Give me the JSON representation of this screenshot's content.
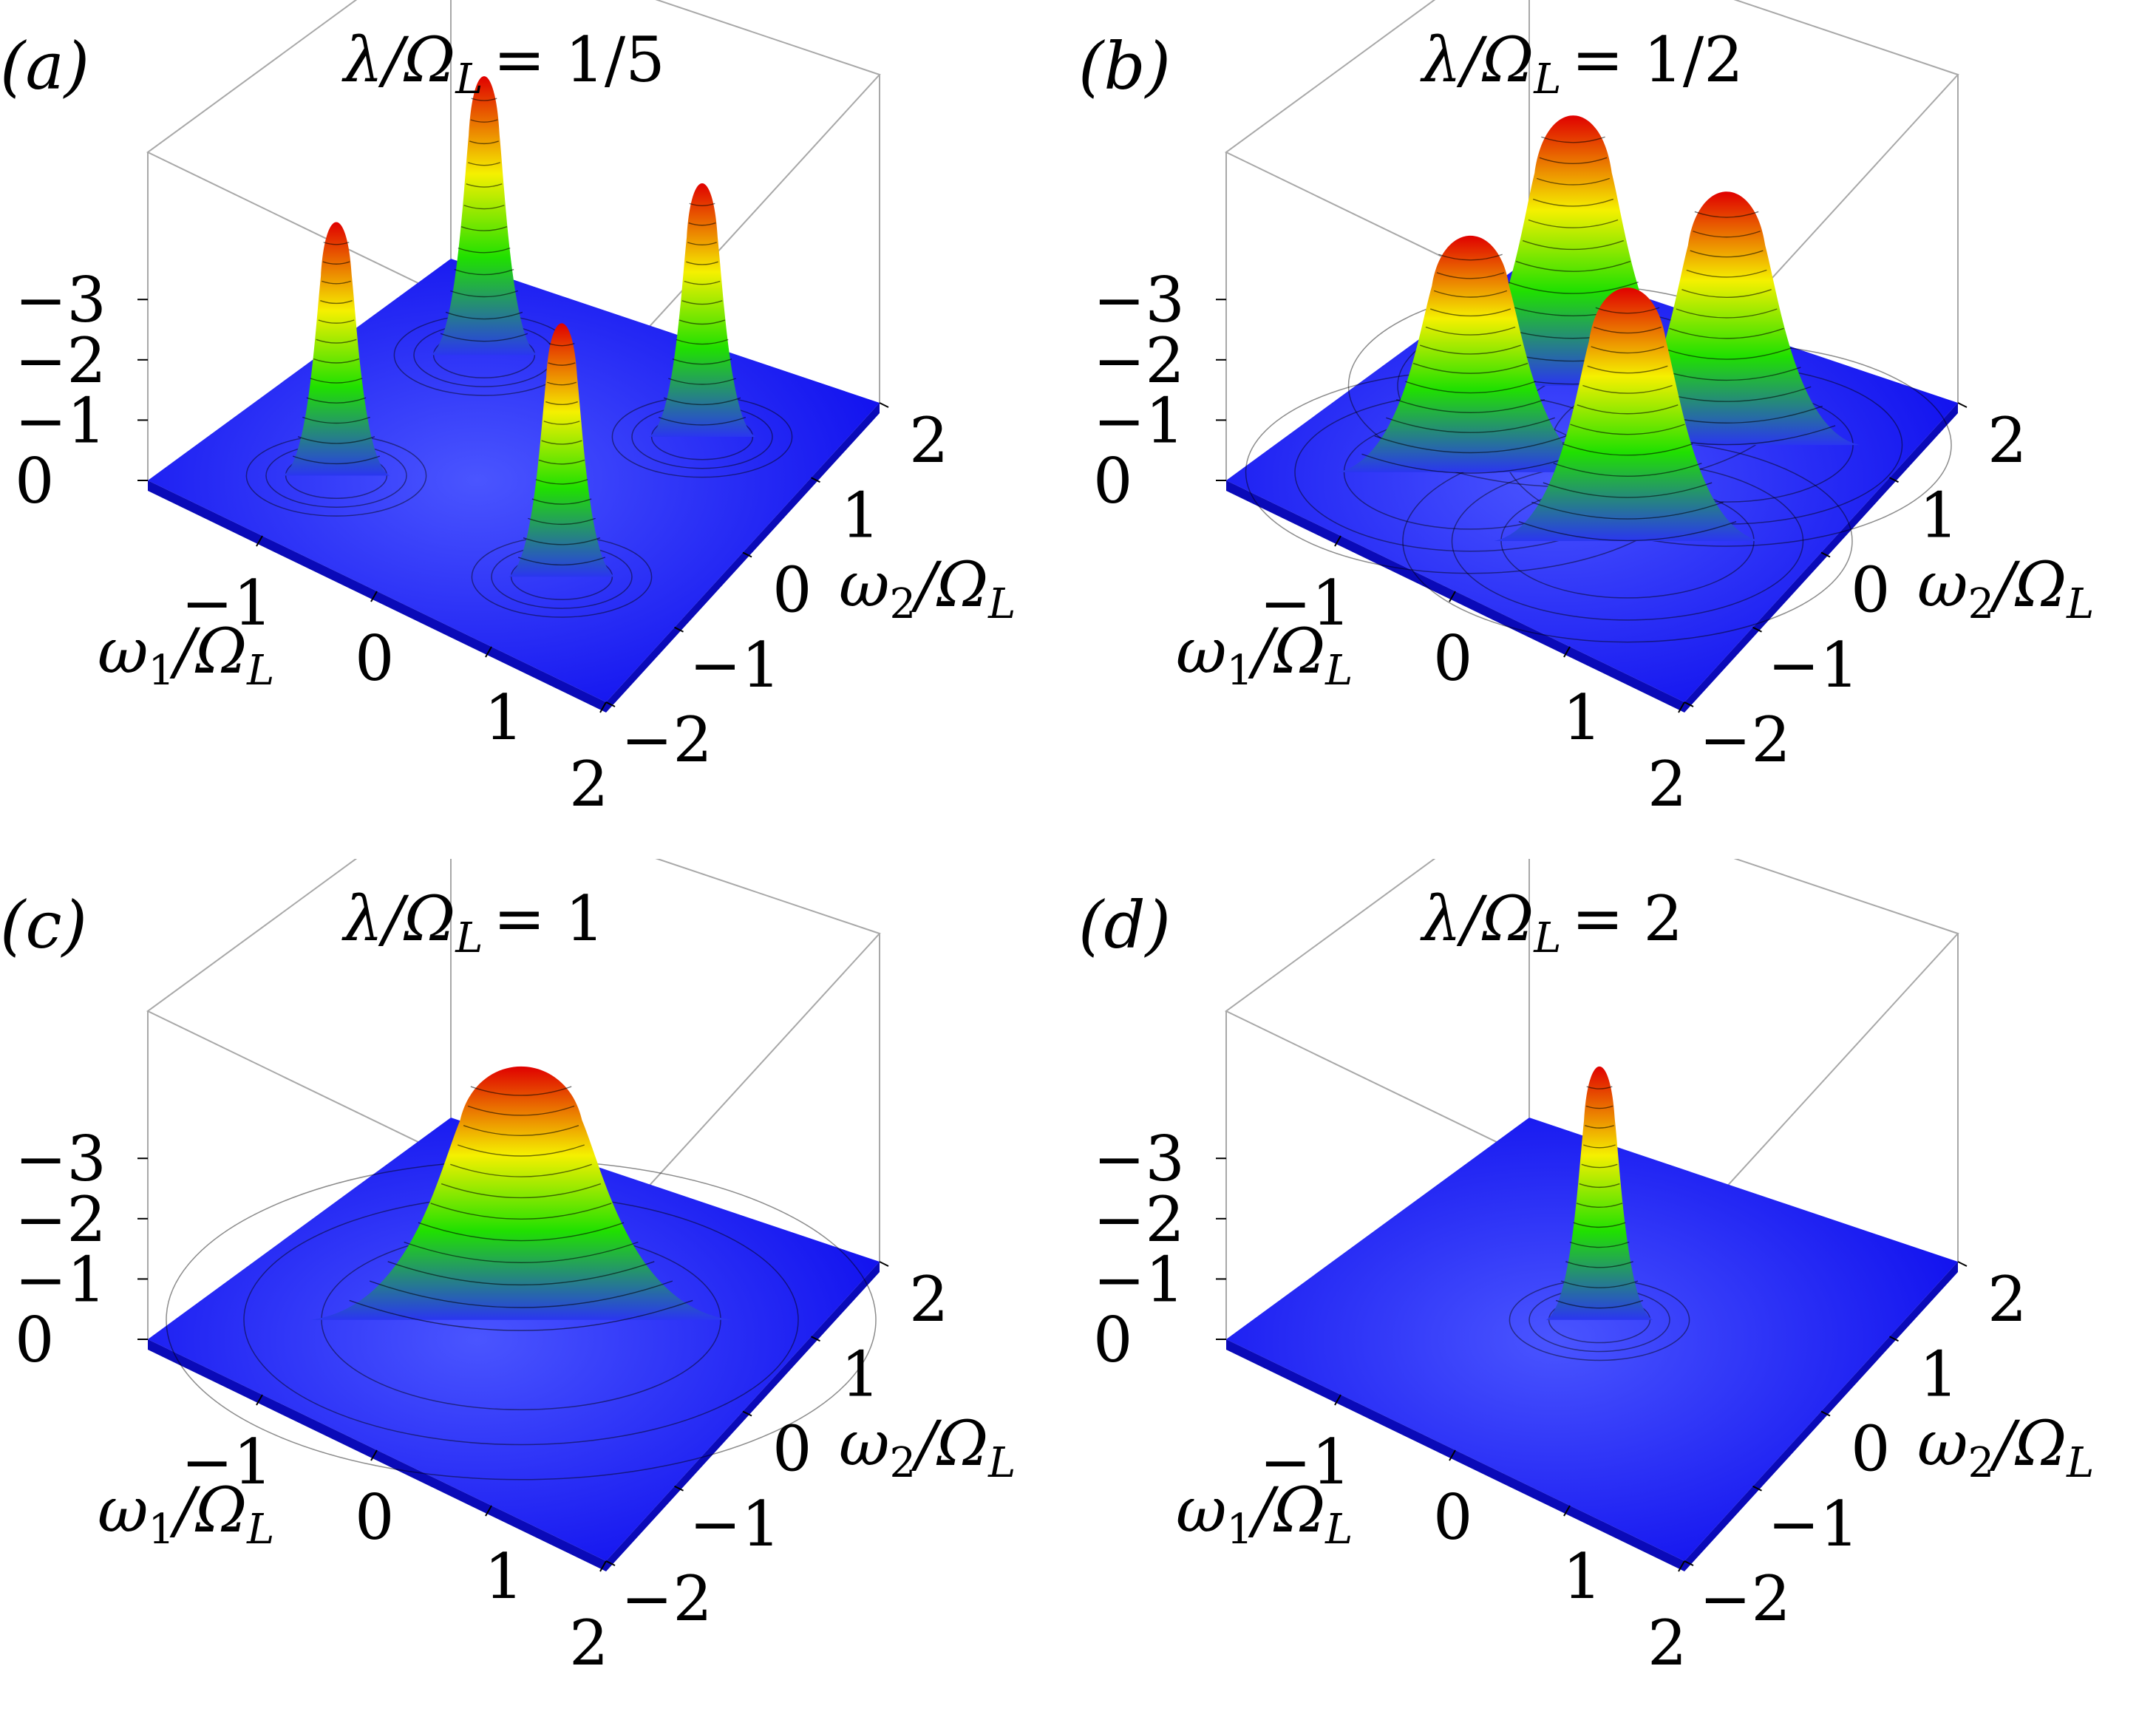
{
  "figure": {
    "panels": [
      {
        "id": "a",
        "letter": "(a)",
        "title": "λ/Ω",
        "title_sub": "L",
        "title_val": "= 1/5"
      },
      {
        "id": "b",
        "letter": "(b)",
        "title": "λ/Ω",
        "title_sub": "L",
        "title_val": "= 1/2"
      },
      {
        "id": "c",
        "letter": "(c)",
        "title": "λ/Ω",
        "title_sub": "L",
        "title_val": "= 1"
      },
      {
        "id": "d",
        "letter": "(d)",
        "title": "λ/Ω",
        "title_sub": "L",
        "title_val": "= 2"
      }
    ],
    "axes": {
      "x_label": "ω",
      "x_label_sub": "1",
      "x_label_den": "/Ω",
      "x_label_den_sub": "L",
      "y_label": "ω",
      "y_label_sub": "2",
      "y_label_den": "/Ω",
      "y_label_den_sub": "L",
      "x_ticks": [
        "−1",
        "0",
        "1",
        "2"
      ],
      "y_ticks": [
        "2",
        "1",
        "0",
        "−1",
        "−2"
      ],
      "z_ticks": [
        "−3",
        "−2",
        "−1",
        "0"
      ]
    },
    "colors": {
      "base": "#1010ee",
      "peak_low": "#2a36f0",
      "peak_green": "#20e000",
      "peak_yellow": "#f5f000",
      "peak_red": "#e00000",
      "box": "#a8a8a8"
    }
  },
  "chart_data": [
    {
      "type": "surface3d",
      "panel": "a",
      "title": "λ/Ω_L = 1/5",
      "xlabel": "ω_1/Ω_L",
      "ylabel": "ω_2/Ω_L",
      "xlim": [
        -2,
        2
      ],
      "ylim": [
        -2,
        2
      ],
      "z_ticks": [
        -3,
        -2,
        -1,
        0
      ],
      "peaks": [
        {
          "x": -1,
          "y": 1,
          "height": 3.3
        },
        {
          "x": 1,
          "y": 1,
          "height": 3.0
        },
        {
          "x": -1,
          "y": -1,
          "height": 3.0
        },
        {
          "x": 1,
          "y": -1,
          "height": 3.0
        }
      ],
      "colorscale": [
        "blue",
        "green",
        "yellow",
        "red"
      ]
    },
    {
      "type": "surface3d",
      "panel": "b",
      "title": "λ/Ω_L = 1/2",
      "xlabel": "ω_1/Ω_L",
      "ylabel": "ω_2/Ω_L",
      "xlim": [
        -2,
        2
      ],
      "ylim": [
        -2,
        2
      ],
      "z_ticks": [
        -3,
        -2,
        -1,
        0
      ],
      "peaks": [
        {
          "x": -0.7,
          "y": 0.7,
          "height": 3.2
        },
        {
          "x": 0.7,
          "y": 0.7,
          "height": 3.0
        },
        {
          "x": -0.7,
          "y": -0.7,
          "height": 2.8
        },
        {
          "x": 0.7,
          "y": -0.7,
          "height": 3.0
        }
      ],
      "colorscale": [
        "blue",
        "green",
        "yellow",
        "red"
      ]
    },
    {
      "type": "surface3d",
      "panel": "c",
      "title": "λ/Ω_L = 1",
      "xlabel": "ω_1/Ω_L",
      "ylabel": "ω_2/Ω_L",
      "xlim": [
        -2,
        2
      ],
      "ylim": [
        -2,
        2
      ],
      "z_ticks": [
        -3,
        -2,
        -1,
        0
      ],
      "peaks": [
        {
          "x": 0,
          "y": 0,
          "height": 3.0
        }
      ],
      "colorscale": [
        "blue",
        "green",
        "yellow",
        "red"
      ]
    },
    {
      "type": "surface3d",
      "panel": "d",
      "title": "λ/Ω_L = 2",
      "xlabel": "ω_1/Ω_L",
      "ylabel": "ω_2/Ω_L",
      "xlim": [
        -2,
        2
      ],
      "ylim": [
        -2,
        2
      ],
      "z_ticks": [
        -3,
        -2,
        -1,
        0
      ],
      "peaks": [
        {
          "x": 0,
          "y": 0,
          "height": 3.0
        }
      ],
      "colorscale": [
        "blue",
        "green",
        "yellow",
        "red"
      ]
    }
  ]
}
